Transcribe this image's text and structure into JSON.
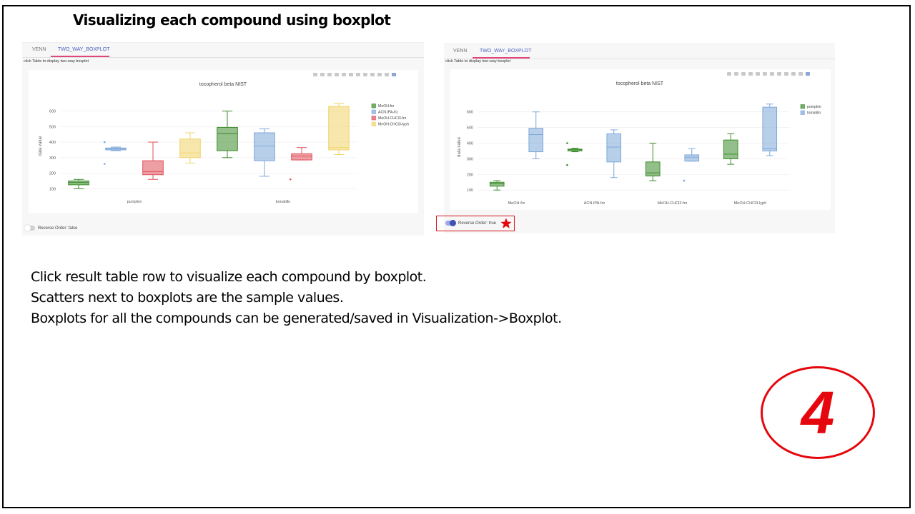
{
  "slide": {
    "title": "Visualizing each compound using boxplot",
    "body_lines": [
      "Click result table row to visualize each compound by boxplot.",
      "Scatters next to boxplots are the sample values.",
      "Boxplots for all the compounds can be generated/saved in Visualization->Boxplot."
    ],
    "step_number": "4"
  },
  "left_panel": {
    "tabs": [
      "VENN",
      "TWO_WAY_BOXPLOT"
    ],
    "active_tab": "TWO_WAY_BOXPLOT",
    "hint": "click Table to display two-way boxplot",
    "reverse_label": "Reverse Order: false",
    "reverse_on": false
  },
  "right_panel": {
    "tabs": [
      "VENN",
      "TWO_WAY_BOXPLOT"
    ],
    "active_tab": "TWO_WAY_BOXPLOT",
    "hint": "click Table to display two-way boxplot",
    "reverse_label": "Reverse Order: true",
    "reverse_on": true
  },
  "toolbar_icons": [
    "camera-icon",
    "save-icon",
    "zoom-icon",
    "pan-icon",
    "zoom-in-icon",
    "zoom-out-icon",
    "autoscale-icon",
    "reset-axes-icon",
    "spike-icon",
    "hover-closest-icon",
    "hover-compare-icon",
    "plotly-logo-icon"
  ],
  "colors": {
    "green": "#3b8a2a",
    "blue": "#7da7d9",
    "red": "#e0505a",
    "yellow": "#f1d36a",
    "accent": "#4a5fc1",
    "highlight": "#d6151b"
  },
  "chart_data": [
    {
      "type": "box",
      "title": "tocopherol beta NIST",
      "ylabel": "data value",
      "ylim": [
        60,
        690
      ],
      "yticks": [
        100,
        200,
        300,
        400,
        500,
        600
      ],
      "categories": [
        "pumpkin",
        "tomatillo"
      ],
      "legend": "top-right",
      "series": [
        {
          "name": "MeOH-frz",
          "color": "#3b8a2a",
          "boxes": [
            [
              100,
              125,
              140,
              150,
              160
            ],
            [
              300,
              345,
              455,
              495,
              600
            ]
          ],
          "outliers": [
            [],
            []
          ]
        },
        {
          "name": "ACN.IPA-frz",
          "color": "#7da7d9",
          "boxes": [
            [
              345,
              350,
              358,
              362,
              368
            ],
            [
              180,
              280,
              375,
              460,
              485
            ]
          ],
          "outliers": [
            [
              400,
              260
            ],
            []
          ]
        },
        {
          "name": "MeOH.CHCl3-frz",
          "color": "#e0505a",
          "boxes": [
            [
              160,
              190,
              210,
              280,
              400
            ],
            [
              285,
              285,
              310,
              325,
              365
            ]
          ],
          "outliers": [
            [],
            [
              160
            ]
          ]
        },
        {
          "name": "MeOH.CHCl3-lyph",
          "color": "#f1d36a",
          "boxes": [
            [
              265,
              300,
              330,
              420,
              460
            ],
            [
              320,
              350,
              365,
              630,
              650
            ]
          ],
          "outliers": [
            [],
            []
          ]
        }
      ]
    },
    {
      "type": "box",
      "title": "tocopherol beta NIST",
      "ylabel": "data value",
      "ylim": [
        60,
        690
      ],
      "yticks": [
        100,
        200,
        300,
        400,
        500,
        600
      ],
      "categories": [
        "MeOH-frz",
        "ACN.IPA-frz",
        "MeOH.CHCl3-frz",
        "MeOH.CHCl3-lyph"
      ],
      "legend": "top-right",
      "series": [
        {
          "name": "pumpkin",
          "color": "#3b8a2a",
          "boxes": [
            [
              100,
              125,
              140,
              150,
              160
            ],
            [
              345,
              350,
              358,
              362,
              368
            ],
            [
              160,
              190,
              210,
              280,
              400
            ],
            [
              265,
              300,
              330,
              420,
              460
            ]
          ],
          "outliers": [
            [],
            [
              400,
              260
            ],
            [],
            []
          ]
        },
        {
          "name": "tomatillo",
          "color": "#7da7d9",
          "boxes": [
            [
              300,
              345,
              455,
              495,
              600
            ],
            [
              180,
              280,
              375,
              460,
              485
            ],
            [
              285,
              285,
              310,
              325,
              365
            ],
            [
              320,
              350,
              365,
              630,
              650
            ]
          ],
          "outliers": [
            [],
            [],
            [
              160
            ],
            []
          ]
        }
      ]
    }
  ]
}
